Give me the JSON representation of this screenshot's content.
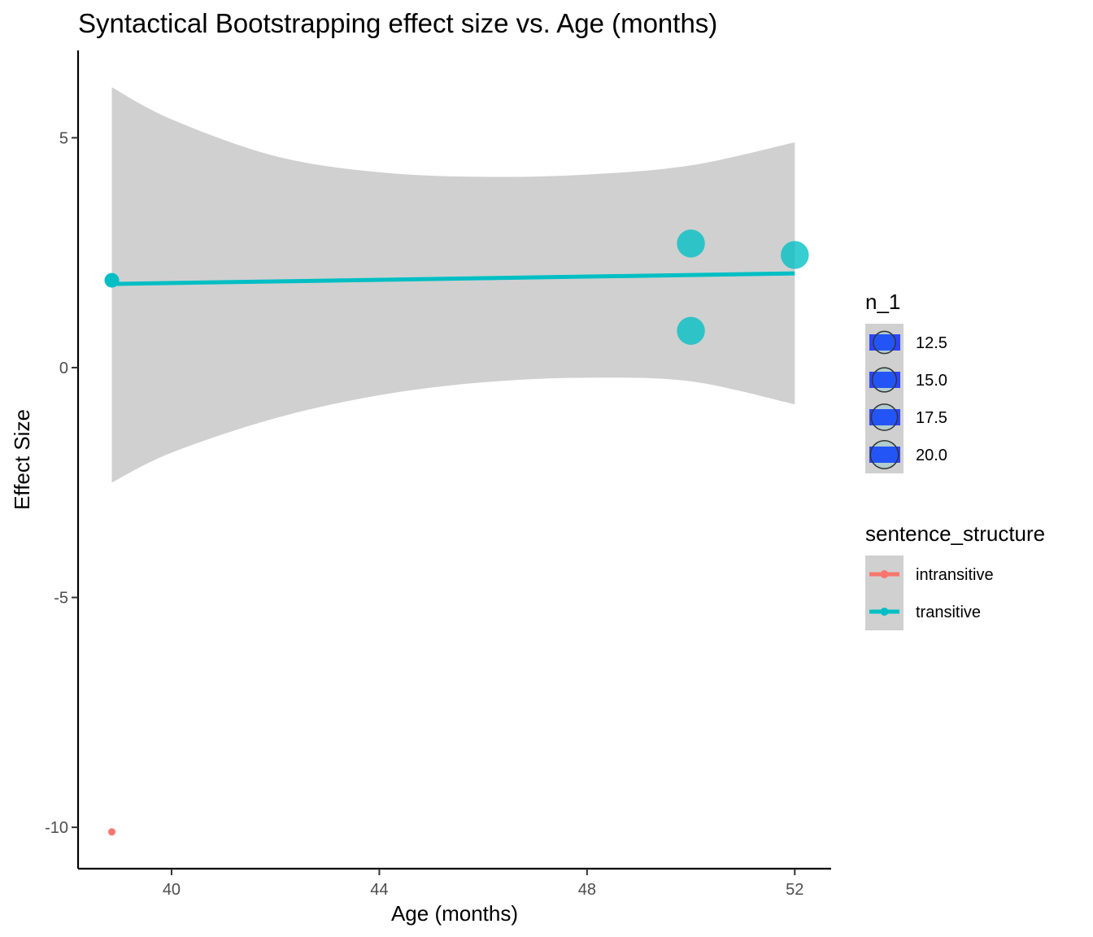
{
  "chart_data": {
    "type": "scatter",
    "title": "Syntactical Bootstrapping effect size vs. Age (months)",
    "xlabel": "Age (months)",
    "ylabel": "Effect Size",
    "xlim": [
      38.2,
      52.7
    ],
    "ylim": [
      -10.9,
      6.9
    ],
    "x_ticks": [
      "40",
      "44",
      "48",
      "52"
    ],
    "x_tick_values": [
      40,
      44,
      48,
      52
    ],
    "y_ticks": [
      "5",
      "0",
      "-5",
      "-10"
    ],
    "y_tick_values": [
      5,
      0,
      -5,
      -10
    ],
    "grid": false,
    "legend_position": "right",
    "colors": {
      "intransitive": "#f8766d",
      "transitive": "#00bfc4",
      "ribbon": "#d0d0d0",
      "size_legend_fill": "#2a44ff"
    },
    "size_legend": {
      "title": "n_1",
      "entries": [
        "12.5",
        "15.0",
        "17.5",
        "20.0"
      ],
      "values": [
        12.5,
        15.0,
        17.5,
        20.0
      ]
    },
    "color_legend": {
      "title": "sentence_structure",
      "entries": [
        "intransitive",
        "transitive"
      ]
    },
    "series": [
      {
        "name": "intransitive",
        "points": [
          {
            "x": 38.85,
            "y": -10.1,
            "n": 8
          }
        ]
      },
      {
        "name": "transitive",
        "points": [
          {
            "x": 38.85,
            "y": 1.9,
            "n": 10
          },
          {
            "x": 50.0,
            "y": 2.7,
            "n": 20
          },
          {
            "x": 50.0,
            "y": 0.8,
            "n": 20
          },
          {
            "x": 52.0,
            "y": 2.45,
            "n": 20
          }
        ],
        "fit_line": {
          "x": [
            38.85,
            52.0
          ],
          "y": [
            1.82,
            2.05
          ]
        },
        "confidence_band": {
          "x": [
            38.85,
            40,
            42,
            44,
            46,
            48,
            50,
            52
          ],
          "upper": [
            6.1,
            5.4,
            4.6,
            4.25,
            4.15,
            4.2,
            4.4,
            4.9
          ],
          "lower": [
            -2.5,
            -1.85,
            -1.1,
            -0.6,
            -0.32,
            -0.22,
            -0.3,
            -0.8
          ]
        }
      }
    ]
  }
}
